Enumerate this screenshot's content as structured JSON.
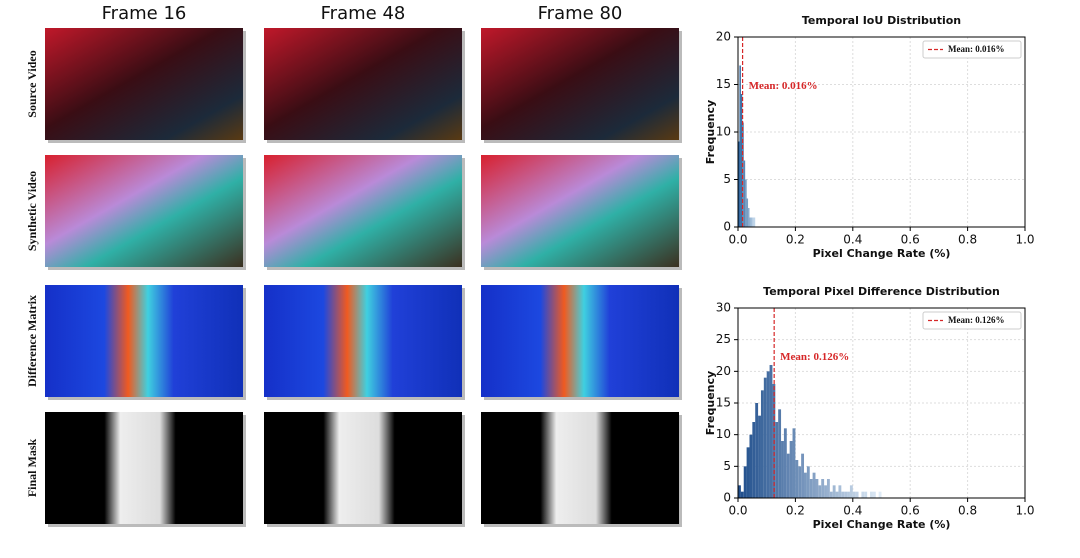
{
  "figure": {
    "columns": [
      "Frame 16",
      "Frame 48",
      "Frame 80"
    ],
    "rows": [
      "Source Video",
      "Synthetic Video",
      "Difference Matrix",
      "Final Mask"
    ]
  },
  "chart_data": [
    {
      "type": "histogram",
      "title": "Temporal IoU Distribution",
      "xlabel": "Pixel Change Rate (%)",
      "ylabel": "Frequency",
      "bins": [
        0,
        0.005,
        0.01,
        0.015,
        0.02,
        0.025,
        0.03,
        0.035,
        0.04,
        0.045,
        0.05,
        0.055,
        0.06
      ],
      "counts": [
        9,
        17,
        14,
        11,
        7,
        5,
        3,
        2,
        1,
        1,
        1,
        1
      ],
      "colors": [
        "#1f5a96",
        "#cfe1f2"
      ],
      "xlim": [
        0,
        1
      ],
      "ylim": [
        0,
        20
      ],
      "xticks": [
        {
          "value": 0,
          "label": "0.0"
        },
        {
          "value": 0.2,
          "label": "0.2"
        },
        {
          "value": 0.4,
          "label": "0.4"
        },
        {
          "value": 0.6,
          "label": "0.6"
        },
        {
          "value": 0.8,
          "label": "0.8"
        },
        {
          "value": 1,
          "label": "1.0"
        }
      ],
      "yticks": [
        0,
        5,
        10,
        15,
        20
      ],
      "grid": true,
      "mean": 0.016,
      "mean_color": "#d62728",
      "annotation": "Mean: 0.016%",
      "legend": "Mean: 0.016%",
      "legend_loc": "upper right"
    },
    {
      "type": "histogram",
      "title": "Temporal Pixel Difference Distribution",
      "xlabel": "Pixel Change Rate (%)",
      "ylabel": "Frequency",
      "bins": [
        0,
        0.01,
        0.02,
        0.03,
        0.04,
        0.05,
        0.06,
        0.07,
        0.08,
        0.09,
        0.1,
        0.11,
        0.12,
        0.13,
        0.14,
        0.15,
        0.16,
        0.17,
        0.18,
        0.19,
        0.2,
        0.21,
        0.22,
        0.23,
        0.24,
        0.25,
        0.26,
        0.27,
        0.28,
        0.29,
        0.3,
        0.31,
        0.32,
        0.33,
        0.34,
        0.35,
        0.36,
        0.37,
        0.38,
        0.39,
        0.4,
        0.41,
        0.42,
        0.43,
        0.44,
        0.45,
        0.46,
        0.47,
        0.48,
        0.49,
        0.5
      ],
      "counts": [
        2,
        1,
        5,
        8,
        10,
        12,
        15,
        13,
        17,
        19,
        20,
        21,
        18,
        12,
        14,
        9,
        11,
        7,
        9,
        11,
        6,
        5,
        7,
        4,
        5,
        3,
        4,
        3,
        2,
        3,
        2,
        3,
        1,
        2,
        1,
        2,
        1,
        1,
        1,
        2,
        1,
        1,
        0,
        1,
        1,
        0,
        1,
        1,
        0,
        1
      ],
      "colors": [
        "#1f4e8c",
        "#e3eef8"
      ],
      "xlim": [
        0,
        1
      ],
      "ylim": [
        0,
        30
      ],
      "xticks": [
        {
          "value": 0,
          "label": "0.0"
        },
        {
          "value": 0.2,
          "label": "0.2"
        },
        {
          "value": 0.4,
          "label": "0.4"
        },
        {
          "value": 0.6,
          "label": "0.6"
        },
        {
          "value": 0.8,
          "label": "0.8"
        },
        {
          "value": 1,
          "label": "1.0"
        }
      ],
      "yticks": [
        0,
        5,
        10,
        15,
        20,
        25,
        30
      ],
      "grid": true,
      "mean": 0.126,
      "mean_color": "#d62728",
      "annotation": "Mean: 0.126%",
      "legend": "Mean: 0.126%",
      "legend_loc": "upper right"
    }
  ]
}
